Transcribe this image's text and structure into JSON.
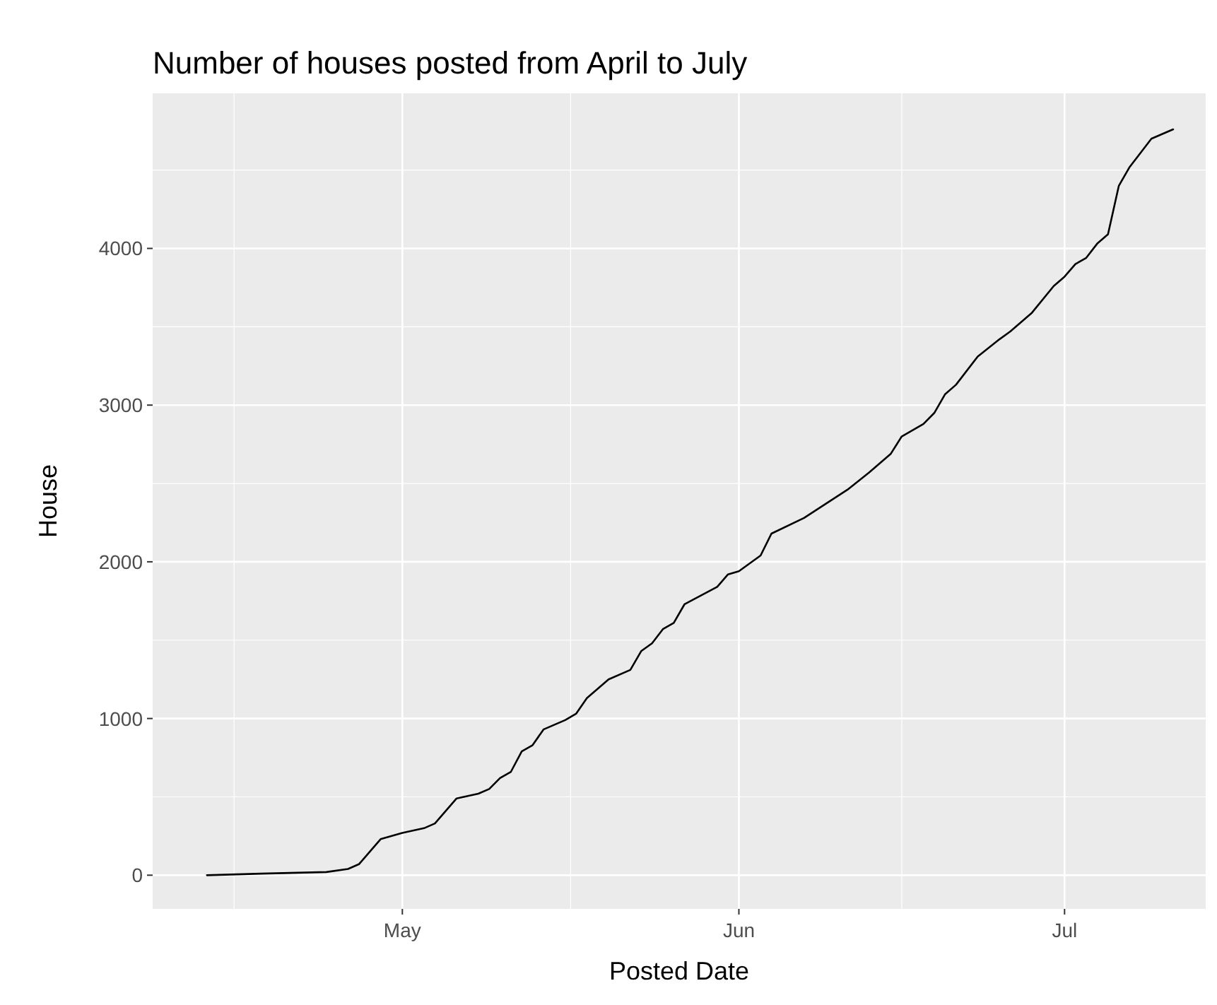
{
  "chart_data": {
    "type": "line",
    "title": "Number of houses posted from April to July",
    "xlabel": "Posted Date",
    "ylabel": "House",
    "x": [
      "--04-13",
      "--04-18",
      "--04-24",
      "--04-26",
      "--04-27",
      "--04-28",
      "--04-29",
      "--05-01",
      "--05-03",
      "--05-04",
      "--05-06",
      "--05-08",
      "--05-09",
      "--05-10",
      "--05-11",
      "--05-12",
      "--05-13",
      "--05-14",
      "--05-16",
      "--05-17",
      "--05-18",
      "--05-20",
      "--05-22",
      "--05-23",
      "--05-24",
      "--05-25",
      "--05-26",
      "--05-27",
      "--05-30",
      "--05-31",
      "--06-01",
      "--06-03",
      "--06-04",
      "--06-07",
      "--06-09",
      "--06-11",
      "--06-13",
      "--06-15",
      "--06-16",
      "--06-18",
      "--06-19",
      "--06-20",
      "--06-21",
      "--06-23",
      "--06-25",
      "--06-26",
      "--06-28",
      "--06-30",
      "--07-01",
      "--07-02",
      "--07-03",
      "--07-04",
      "--07-05",
      "--07-06",
      "--07-07",
      "--07-09",
      "--07-11"
    ],
    "series": [
      {
        "color": "#000000",
        "values": [
          0,
          10,
          20,
          40,
          70,
          150,
          230,
          270,
          300,
          330,
          490,
          520,
          550,
          620,
          660,
          790,
          830,
          930,
          990,
          1030,
          1130,
          1250,
          1310,
          1430,
          1480,
          1570,
          1610,
          1730,
          1840,
          1920,
          1940,
          2040,
          2180,
          2280,
          2370,
          2460,
          2570,
          2690,
          2800,
          2880,
          2950,
          3070,
          3130,
          3310,
          3420,
          3470,
          3590,
          3760,
          3820,
          3900,
          3940,
          4030,
          4090,
          4400,
          4520,
          4700,
          4760
        ]
      }
    ],
    "xlim": [
      "--04-08",
      "--07-14"
    ],
    "xticks": [
      {
        "value": "--05-01",
        "label": "May"
      },
      {
        "value": "--06-01",
        "label": "Jun"
      },
      {
        "value": "--07-01",
        "label": "Jul"
      }
    ],
    "ylim": [
      -215,
      4990
    ],
    "yticks": [
      0,
      1000,
      2000,
      3000,
      4000
    ],
    "grid": true,
    "marker": "none",
    "line_style": "solid"
  }
}
